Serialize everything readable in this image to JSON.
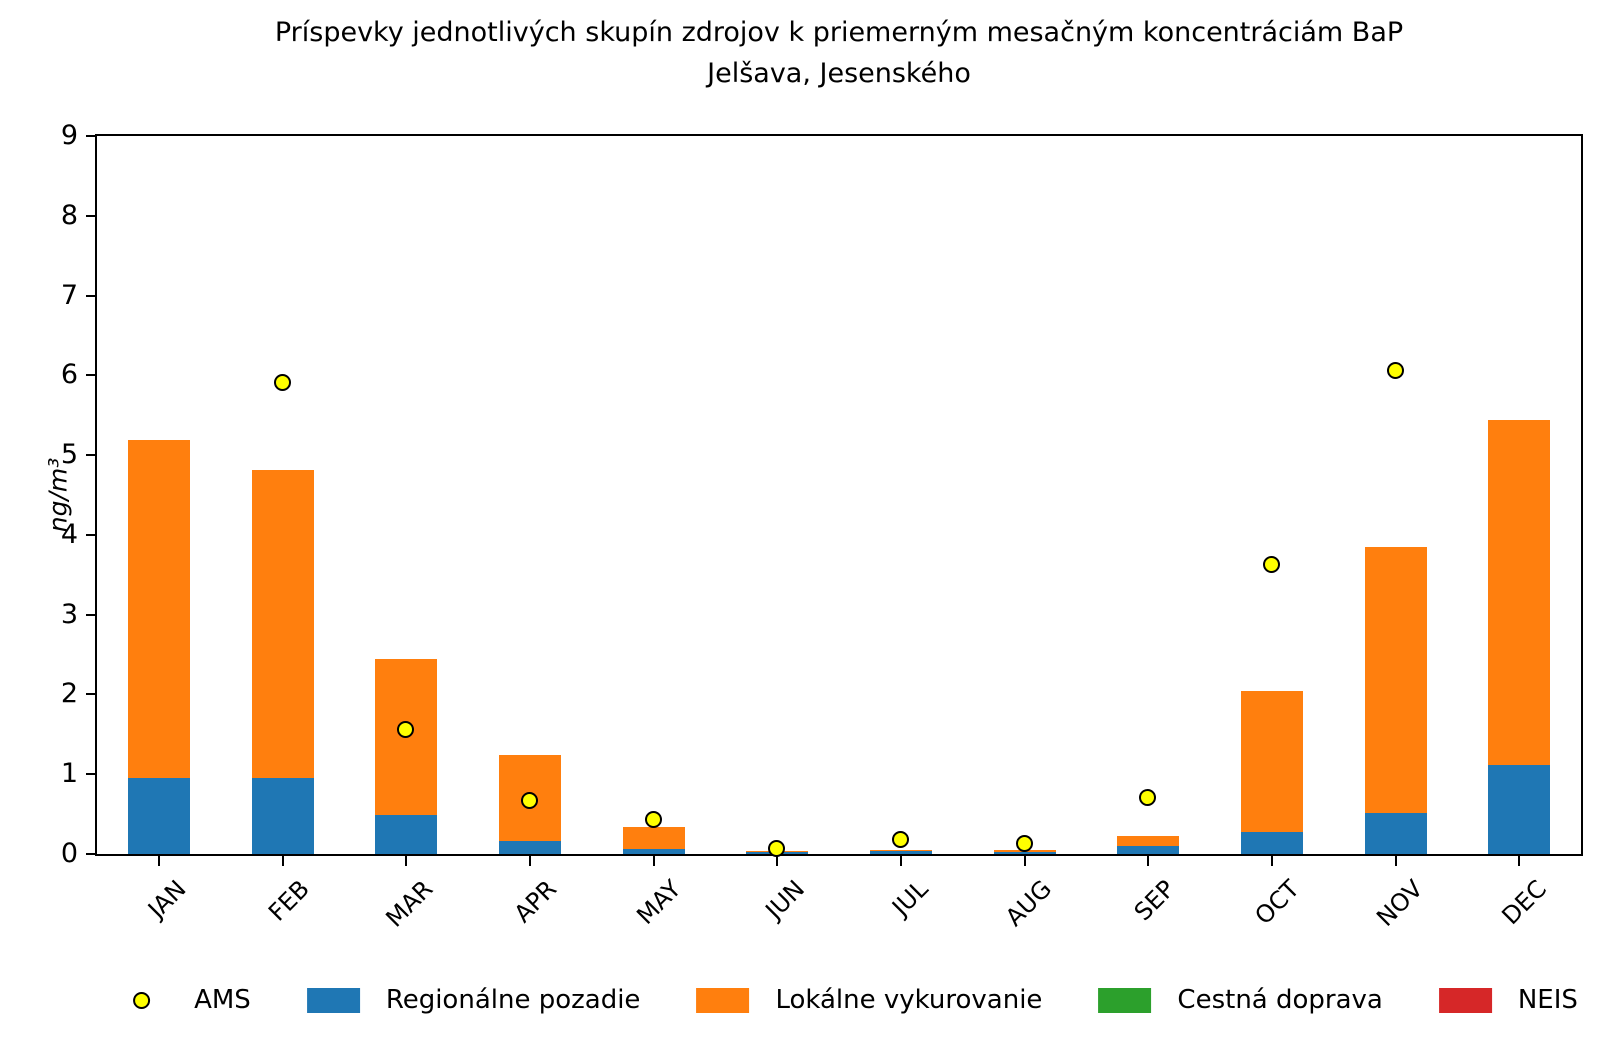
{
  "chart_data": {
    "type": "bar",
    "stacked": true,
    "title": "Príspevky jednotlivých skupín zdrojov k priemerným mesačným koncentráciám BaP",
    "subtitle": "Jelšava, Jesenského",
    "ylabel": "ng/m³",
    "ylim": [
      0,
      9
    ],
    "yticks": [
      0,
      1,
      2,
      3,
      4,
      5,
      6,
      7,
      8,
      9
    ],
    "grid": false,
    "legend_position": "bottom",
    "categories": [
      "JAN",
      "FEB",
      "MAR",
      "APR",
      "MAY",
      "JUN",
      "JUL",
      "AUG",
      "SEP",
      "OCT",
      "NOV",
      "DEC"
    ],
    "series": [
      {
        "name": "Regionálne pozadie",
        "color": "#1f77b4",
        "values": [
          0.95,
          0.95,
          0.49,
          0.16,
          0.06,
          0.03,
          0.04,
          0.03,
          0.1,
          0.28,
          0.51,
          1.12
        ]
      },
      {
        "name": "Lokálne vykurovanie",
        "color": "#ff7f0e",
        "values": [
          4.24,
          3.86,
          1.96,
          1.08,
          0.28,
          0.01,
          0.01,
          0.02,
          0.13,
          1.76,
          3.34,
          4.32
        ]
      },
      {
        "name": "Cestná doprava",
        "color": "#2ca02c",
        "values": [
          0,
          0,
          0,
          0,
          0,
          0,
          0,
          0,
          0,
          0,
          0,
          0
        ]
      },
      {
        "name": "NEIS",
        "color": "#d62728",
        "values": [
          0,
          0,
          0,
          0,
          0,
          0,
          0,
          0,
          0,
          0,
          0,
          0
        ]
      }
    ],
    "scatter_series": {
      "name": "AMS",
      "marker": "circle",
      "fill_color": "#ffff00",
      "edge_color": "#000000",
      "values": [
        null,
        5.9,
        1.56,
        0.67,
        0.42,
        0.06,
        0.17,
        0.12,
        0.7,
        3.62,
        6.05,
        null
      ]
    },
    "bar_totals": [
      5.19,
      4.81,
      2.45,
      1.24,
      0.34,
      0.04,
      0.05,
      0.05,
      0.23,
      2.04,
      3.85,
      5.44
    ]
  }
}
